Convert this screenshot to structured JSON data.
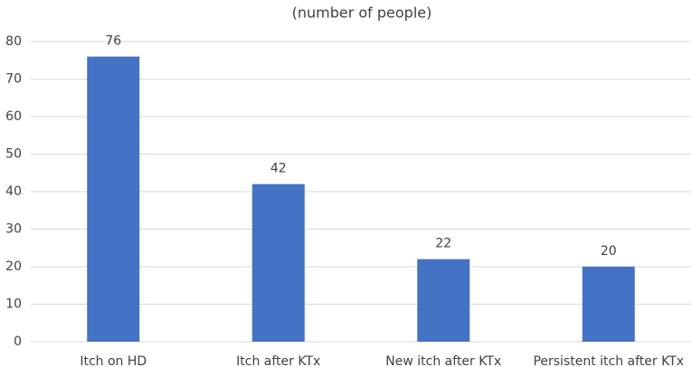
{
  "chart_data": {
    "type": "bar",
    "title": "(number of people)",
    "categories": [
      "Itch on HD",
      "Itch after KTx",
      "New itch after KTx",
      "Persistent itch after KTx"
    ],
    "values": [
      76,
      42,
      22,
      20
    ],
    "color": "#4472c4",
    "ylim": [
      0,
      80
    ],
    "yticks": [
      0,
      10,
      20,
      30,
      40,
      50,
      60,
      70,
      80
    ],
    "grid": true,
    "data_labels": true
  }
}
